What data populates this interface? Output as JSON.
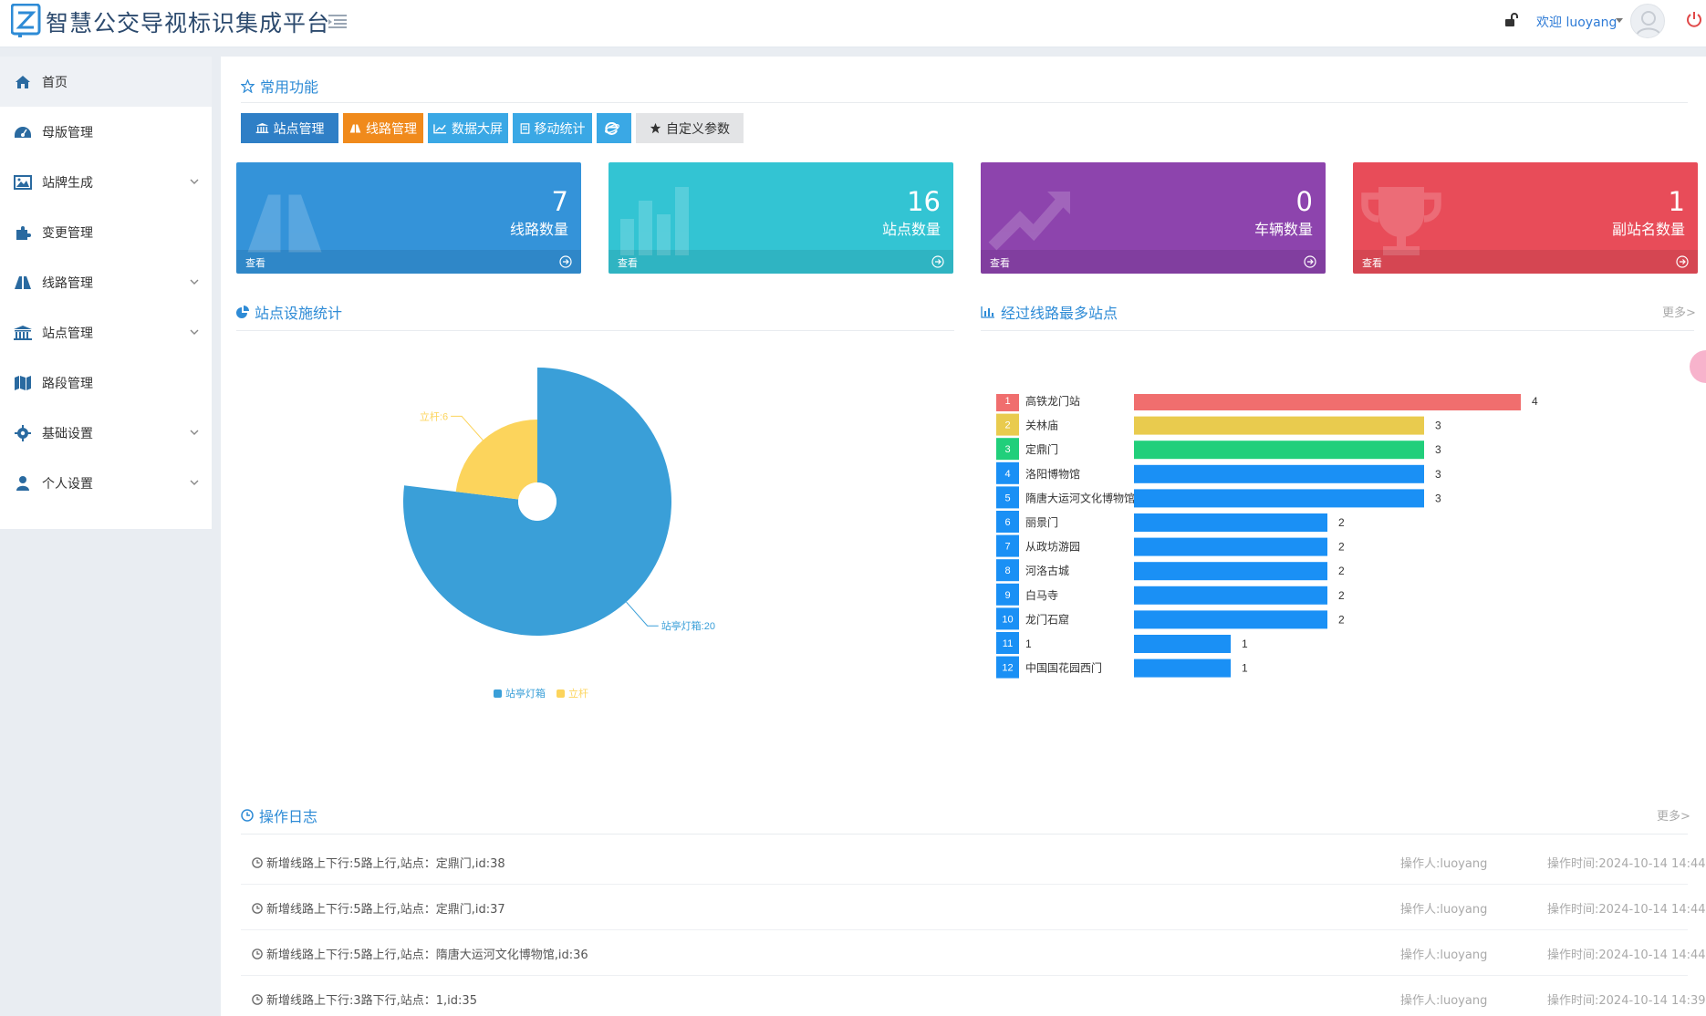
{
  "app": {
    "title": "智慧公交导视标识集成平台",
    "welcome": "欢迎 luoyang"
  },
  "sidebar": {
    "items": [
      {
        "label": "首页",
        "icon": "home-icon"
      },
      {
        "label": "母版管理",
        "icon": "dashboard-icon"
      },
      {
        "label": "站牌生成",
        "icon": "image-icon"
      },
      {
        "label": "变更管理",
        "icon": "puzzle-icon"
      },
      {
        "label": "线路管理",
        "icon": "road-icon"
      },
      {
        "label": "站点管理",
        "icon": "bank-icon"
      },
      {
        "label": "路段管理",
        "icon": "map-icon"
      },
      {
        "label": "基础设置",
        "icon": "gear-icon"
      },
      {
        "label": "个人设置",
        "icon": "user-icon"
      }
    ]
  },
  "quick": {
    "title": "常用功能",
    "buttons": [
      {
        "label": "站点管理",
        "color": "#2f7fc6"
      },
      {
        "label": "线路管理",
        "color": "#f08a1c"
      },
      {
        "label": "数据大屏",
        "color": "#3aa8e5"
      },
      {
        "label": "移动统计",
        "color": "#3aa8e5"
      },
      {
        "label": "",
        "color": "#3aa8e5"
      },
      {
        "label": "自定义参数",
        "color": "#e3e4e6"
      }
    ]
  },
  "cards": [
    {
      "count": "7",
      "label": "线路数量",
      "view": "查看",
      "color": "#3493d9"
    },
    {
      "count": "16",
      "label": "站点数量",
      "view": "查看",
      "color": "#33c4d3"
    },
    {
      "count": "0",
      "label": "车辆数量",
      "view": "查看",
      "color": "#8d44ad"
    },
    {
      "count": "1",
      "label": "副站名数量",
      "view": "查看",
      "color": "#e84c59"
    }
  ],
  "pie_section": {
    "title": "站点设施统计"
  },
  "bar_section": {
    "title": "经过线路最多站点",
    "more": "更多>"
  },
  "log_section": {
    "title": "操作日志",
    "more": "更多>",
    "rows": [
      {
        "text": "新增线路上下行:5路上行,站点：定鼎门,id:38",
        "operator": "操作人:luoyang",
        "time": "操作时间:2024-10-14 14:44"
      },
      {
        "text": "新增线路上下行:5路上行,站点：定鼎门,id:37",
        "operator": "操作人:luoyang",
        "time": "操作时间:2024-10-14 14:44"
      },
      {
        "text": "新增线路上下行:5路上行,站点：隋唐大运河文化博物馆,id:36",
        "operator": "操作人:luoyang",
        "time": "操作时间:2024-10-14 14:44"
      },
      {
        "text": "新增线路上下行:3路下行,站点：1,id:35",
        "operator": "操作人:luoyang",
        "time": "操作时间:2024-10-14 14:39"
      }
    ]
  },
  "chart_data": [
    {
      "type": "pie",
      "rose": true,
      "slices": [
        {
          "name": "站亭灯箱",
          "value": 20,
          "label": "站亭灯箱:20",
          "color": "#3a9fd8"
        },
        {
          "name": "立杆",
          "value": 6,
          "label": "立杆:6",
          "color": "#fcd45c"
        }
      ],
      "legend": [
        "站亭灯箱",
        "立杆"
      ],
      "legend_position": "bottom-center"
    },
    {
      "type": "bar",
      "orientation": "horizontal",
      "categories": [
        "高铁龙门站",
        "关林庙",
        "定鼎门",
        "洛阳博物馆",
        "隋唐大运河文化博物馆",
        "丽景门",
        "从政坊游园",
        "河洛古城",
        "白马寺",
        "龙门石窟",
        "1",
        "中国国花园西门"
      ],
      "values": [
        4,
        3,
        3,
        3,
        3,
        2,
        2,
        2,
        2,
        2,
        1,
        1
      ],
      "ranks": [
        "1",
        "2",
        "3",
        "4",
        "5",
        "6",
        "7",
        "8",
        "9",
        "10",
        "11",
        "12"
      ],
      "colors": [
        "#f06e6e",
        "#e9cb4e",
        "#21cf7b",
        "#1a90f5"
      ],
      "xlim": [
        0,
        4
      ]
    }
  ]
}
